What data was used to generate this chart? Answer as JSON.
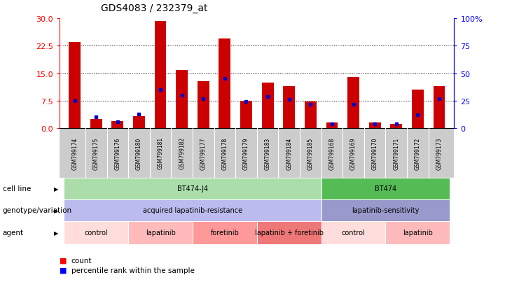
{
  "title": "GDS4083 / 232379_at",
  "samples": [
    "GSM799174",
    "GSM799175",
    "GSM799176",
    "GSM799180",
    "GSM799181",
    "GSM799182",
    "GSM799177",
    "GSM799178",
    "GSM799179",
    "GSM799183",
    "GSM799184",
    "GSM799185",
    "GSM799168",
    "GSM799169",
    "GSM799170",
    "GSM799171",
    "GSM799172",
    "GSM799173"
  ],
  "counts": [
    23.5,
    2.5,
    2.0,
    3.2,
    29.2,
    15.8,
    12.8,
    24.5,
    7.5,
    12.5,
    11.5,
    7.2,
    1.5,
    14.0,
    1.5,
    1.2,
    10.5,
    11.5
  ],
  "percentile_ranks": [
    25,
    10,
    6,
    13,
    35,
    30,
    27,
    45,
    24,
    29,
    26,
    22,
    4,
    22,
    4,
    4,
    12,
    27
  ],
  "ylim_left": [
    0,
    30
  ],
  "ylim_right": [
    0,
    100
  ],
  "yticks_left": [
    0,
    7.5,
    15,
    22.5,
    30
  ],
  "yticks_right": [
    0,
    25,
    50,
    75,
    100
  ],
  "ytick_right_labels": [
    "0",
    "25",
    "50",
    "75",
    "100%"
  ],
  "bar_color": "#cc0000",
  "dot_color": "#0000cc",
  "cell_line_groups": [
    {
      "label": "BT474-J4",
      "start": 0,
      "end": 11,
      "color": "#aaddaa"
    },
    {
      "label": "BT474",
      "start": 12,
      "end": 17,
      "color": "#55bb55"
    }
  ],
  "genotype_groups": [
    {
      "label": "acquired lapatinib-resistance",
      "start": 0,
      "end": 11,
      "color": "#bbbbee"
    },
    {
      "label": "lapatinib-sensitivity",
      "start": 12,
      "end": 17,
      "color": "#9999cc"
    }
  ],
  "agent_groups": [
    {
      "label": "control",
      "start": 0,
      "end": 2,
      "color": "#ffdddd"
    },
    {
      "label": "lapatinib",
      "start": 3,
      "end": 5,
      "color": "#ffbbbb"
    },
    {
      "label": "foretinib",
      "start": 6,
      "end": 8,
      "color": "#ff9999"
    },
    {
      "label": "lapatinib + foretinib",
      "start": 9,
      "end": 11,
      "color": "#ee7777"
    },
    {
      "label": "control",
      "start": 12,
      "end": 14,
      "color": "#ffdddd"
    },
    {
      "label": "lapatinib",
      "start": 15,
      "end": 17,
      "color": "#ffbbbb"
    }
  ],
  "row_labels": [
    "cell line",
    "genotype/variation",
    "agent"
  ],
  "legend_count_label": "count",
  "legend_pct_label": "percentile rank within the sample",
  "bg_color": "#ffffff",
  "tick_area_color": "#cccccc",
  "bar_width": 0.55
}
